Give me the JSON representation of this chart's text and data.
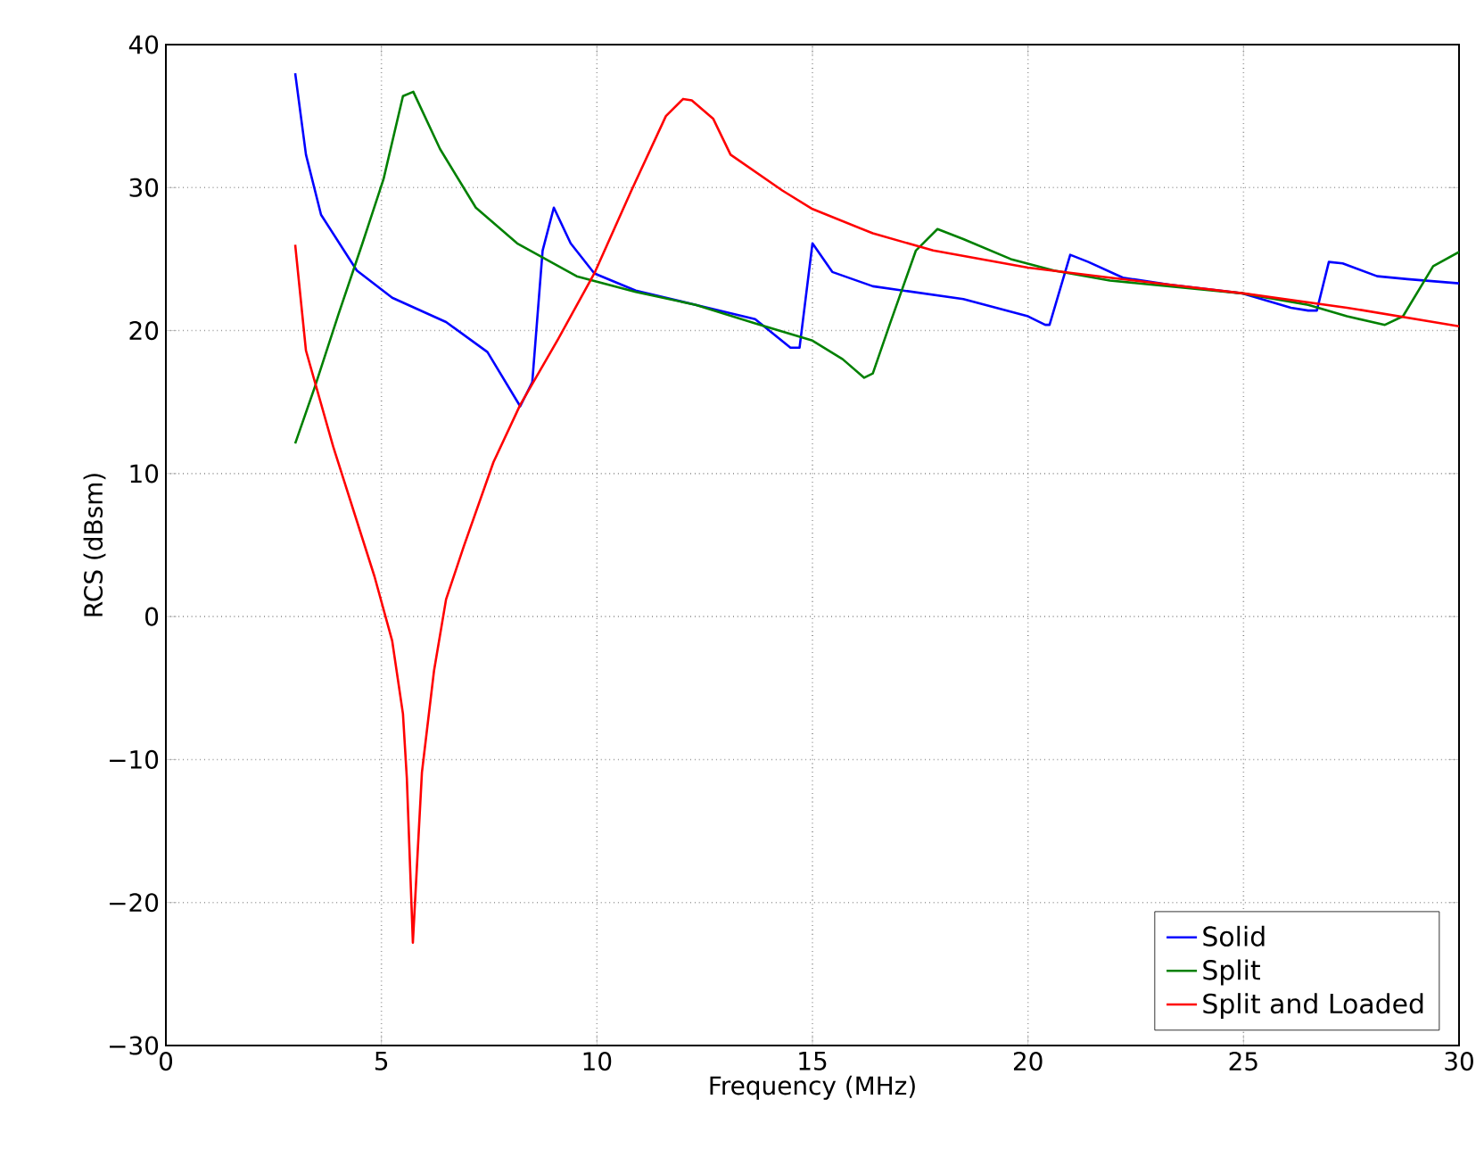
{
  "chart_data": {
    "type": "line",
    "xlabel": "Frequency (MHz)",
    "ylabel": "RCS (dBsm)",
    "xlim": [
      0,
      30
    ],
    "ylim": [
      -30,
      40
    ],
    "xticks": [
      0,
      5,
      10,
      15,
      20,
      25,
      30
    ],
    "yticks": [
      {
        "value": -30,
        "label": "−30"
      },
      {
        "value": -20,
        "label": "−20"
      },
      {
        "value": -10,
        "label": "−10"
      },
      0,
      10,
      20,
      30,
      40
    ],
    "grid": true,
    "legend": "bottom right",
    "line_style": "solid",
    "marker": "none",
    "series": [
      {
        "name": "Solid",
        "color": "#0000ff",
        "x": [
          3,
          3.25,
          3.6,
          4.43,
          5.25,
          6.5,
          7.46,
          8.22,
          8.5,
          8.74,
          9.0,
          9.39,
          9.94,
          10.9,
          12.29,
          13.67,
          14.49,
          14.7,
          15.0,
          15.46,
          16.4,
          18.5,
          20.0,
          20.4,
          20.5,
          20.98,
          21.4,
          22.2,
          23.3,
          24.98,
          26.1,
          26.5,
          26.7,
          26.98,
          27.3,
          28.1,
          28.8,
          30
        ],
        "values": [
          38,
          32.3,
          28.1,
          24.2,
          22.3,
          20.6,
          18.5,
          14.7,
          16.4,
          25.6,
          28.6,
          26.1,
          24.0,
          22.8,
          21.8,
          20.8,
          18.8,
          18.8,
          26.1,
          24.1,
          23.1,
          22.2,
          21.0,
          20.4,
          20.4,
          25.3,
          24.8,
          23.7,
          23.2,
          22.6,
          21.6,
          21.4,
          21.4,
          24.8,
          24.7,
          23.8,
          23.6,
          23.3
        ]
      },
      {
        "name": "Split",
        "color": "#008000",
        "x": [
          3,
          3.46,
          4.0,
          4.56,
          5.05,
          5.5,
          5.74,
          6.36,
          7.19,
          8.15,
          9.53,
          10.9,
          12.29,
          13.67,
          15.0,
          15.7,
          16.2,
          16.4,
          16.8,
          17.4,
          17.9,
          18.5,
          19.6,
          20.6,
          21.9,
          24.98,
          26.5,
          27.4,
          28.28,
          28.7,
          29.4,
          30
        ],
        "values": [
          12.1,
          16.1,
          21.1,
          26.1,
          30.6,
          36.4,
          36.7,
          32.7,
          28.6,
          26.1,
          23.8,
          22.7,
          21.8,
          20.5,
          19.3,
          18.0,
          16.7,
          17.0,
          20.5,
          25.6,
          27.1,
          26.4,
          25.0,
          24.2,
          23.5,
          22.6,
          21.8,
          21.0,
          20.4,
          21.0,
          24.5,
          25.5
        ]
      },
      {
        "name": "Split and Loaded",
        "color": "#ff0000",
        "x": [
          3,
          3.25,
          3.88,
          4.84,
          5.25,
          5.5,
          5.59,
          5.73,
          5.94,
          6.22,
          6.5,
          6.91,
          7.6,
          8.22,
          9.1,
          9.94,
          10.8,
          11.6,
          12.0,
          12.2,
          12.7,
          13.1,
          14.3,
          15.0,
          16.4,
          17.8,
          20.0,
          21.9,
          25.0,
          27.4,
          30
        ],
        "values": [
          26.0,
          18.6,
          11.9,
          2.8,
          -1.7,
          -6.8,
          -11.3,
          -22.8,
          -10.9,
          -3.8,
          1.2,
          4.9,
          10.8,
          14.8,
          19.4,
          24.0,
          29.8,
          35.0,
          36.2,
          36.1,
          34.8,
          32.3,
          29.8,
          28.5,
          26.8,
          25.6,
          24.4,
          23.7,
          22.6,
          21.6,
          20.3
        ]
      }
    ]
  }
}
